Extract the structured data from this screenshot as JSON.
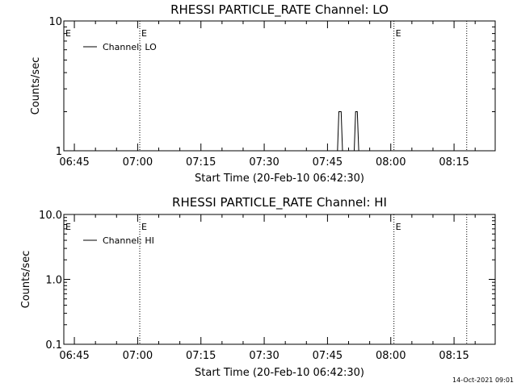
{
  "chart_data": [
    {
      "type": "line",
      "title": "RHESSI PARTICLE_RATE Channel: LO",
      "xlabel": "Start Time (20-Feb-10 06:42:30)",
      "ylabel": "Counts/sec",
      "yscale": "log",
      "ylim": [
        1,
        10
      ],
      "y_ticks": [
        "1",
        "10"
      ],
      "xlim": [
        "06:42:30",
        "08:24:45"
      ],
      "x_ticks": [
        "06:45",
        "07:00",
        "07:15",
        "07:30",
        "07:45",
        "08:00",
        "08:15"
      ],
      "legend": {
        "entries": [
          "Channel: LO"
        ],
        "placement": "top-left"
      },
      "markers": [
        {
          "time": "07:00:30",
          "label": "E"
        },
        {
          "time": "08:00:45",
          "label": "E"
        },
        {
          "time": "08:18:00",
          "label": ""
        }
      ],
      "series": [
        {
          "x": [
            "06:42:30",
            "07:47:22",
            "07:47:42",
            "07:48:14",
            "07:48:34",
            "07:51:20",
            "07:51:40",
            "07:52:04",
            "07:52:24",
            "08:24:45"
          ],
          "y": [
            1,
            1,
            2,
            2,
            1,
            1,
            2,
            2,
            1,
            1
          ]
        }
      ]
    },
    {
      "type": "line",
      "title": "RHESSI PARTICLE_RATE Channel: HI",
      "xlabel": "Start Time (20-Feb-10 06:42:30)",
      "ylabel": "Counts/sec",
      "yscale": "log",
      "ylim": [
        0.1,
        10
      ],
      "y_ticks": [
        "0.1",
        "1.0",
        "10.0"
      ],
      "xlim": [
        "06:42:30",
        "08:24:45"
      ],
      "x_ticks": [
        "06:45",
        "07:00",
        "07:15",
        "07:30",
        "07:45",
        "08:00",
        "08:15"
      ],
      "legend": {
        "entries": [
          "Channel: HI"
        ],
        "placement": "top-left"
      },
      "markers": [
        {
          "time": "07:00:30",
          "label": "E"
        },
        {
          "time": "08:00:45",
          "label": "E"
        },
        {
          "time": "08:18:00",
          "label": ""
        }
      ],
      "series": []
    }
  ],
  "footer": {
    "timestamp": "14-Oct-2021 09:01"
  }
}
